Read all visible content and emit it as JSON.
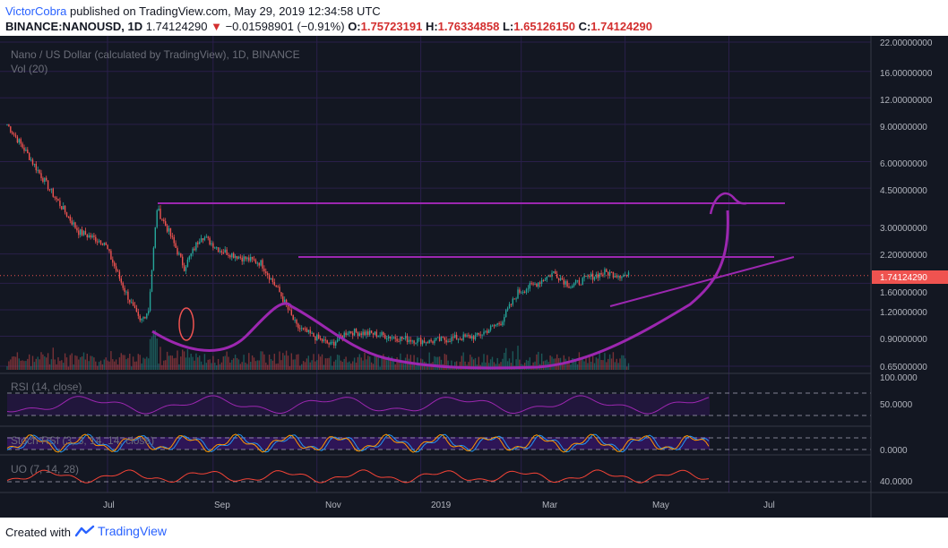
{
  "header": {
    "author": "VictorCobra",
    "published_text": "published on TradingView.com, May 29, 2019 12:34:58 UTC",
    "symbol": "BINANCE:NANOUSD, 1D",
    "last": "1.74124290",
    "change_arrow": "▼",
    "change": "−0.01598901 (−0.91%)",
    "o_label": "O:",
    "o_value": "1.75723191",
    "h_label": "H:",
    "h_value": "1.76334858",
    "l_label": "L:",
    "l_value": "1.65126150",
    "c_label": "C:",
    "c_value": "1.74124290"
  },
  "footer": {
    "created_with": "Created with",
    "brand": "TradingView"
  },
  "colors": {
    "background": "#131722",
    "up": "#26a69a",
    "down": "#ef5350",
    "drawing": "#9c27b0",
    "price_label": "#ef5350",
    "grid": "#2a1f4a"
  },
  "chart_data": [
    {
      "type": "line",
      "title": "Nano / US Dollar (calculated by TradingView), 1D, BINANCE",
      "y_scale": "log",
      "y_ticks": [
        "22.00000000",
        "16.00000000",
        "12.00000000",
        "9.00000000",
        "6.00000000",
        "4.50000000",
        "3.00000000",
        "2.20000000",
        "1.74124290",
        "1.60000000",
        "1.20000000",
        "0.90000000",
        "0.65000000"
      ],
      "x_ticks": [
        "Jul",
        "Sep",
        "Nov",
        "2019",
        "Mar",
        "May",
        "Jul"
      ],
      "current_price": "1.74124290",
      "x": [
        "2018-05-29",
        "2018-06-10",
        "2018-06-25",
        "2018-07-10",
        "2018-07-25",
        "2018-08-05",
        "2018-08-15",
        "2018-08-20",
        "2018-08-25",
        "2018-09-01",
        "2018-09-10",
        "2018-09-20",
        "2018-10-01",
        "2018-10-15",
        "2018-10-25",
        "2018-11-05",
        "2018-11-15",
        "2018-11-25",
        "2018-12-05",
        "2018-12-15",
        "2019-01-01",
        "2019-01-15",
        "2019-02-01",
        "2019-02-15",
        "2019-03-01",
        "2019-03-15",
        "2019-03-25",
        "2019-04-05",
        "2019-04-15",
        "2019-04-25",
        "2019-05-05",
        "2019-05-15",
        "2019-05-25",
        "2019-05-29"
      ],
      "series": [
        {
          "values": [
            9.0,
            6.5,
            4.2,
            2.8,
            2.5,
            1.55,
            1.05,
            1.2,
            3.6,
            2.8,
            1.9,
            2.7,
            2.3,
            2.1,
            2.0,
            1.45,
            1.0,
            0.9,
            0.82,
            0.95,
            0.92,
            0.88,
            0.85,
            0.88,
            0.9,
            1.05,
            1.45,
            1.6,
            1.8,
            1.55,
            1.7,
            1.8,
            1.75,
            1.74
          ]
        }
      ],
      "annotations": [
        "Vol (20)"
      ]
    },
    {
      "type": "line",
      "title": "RSI (14, close)",
      "y_ticks": [
        "100.0000",
        "50.0000",
        "0.0000"
      ]
    },
    {
      "type": "line",
      "title": "Stoch RSI (3, 3, 14, 14, close)",
      "y_ticks": [
        "0.0000"
      ]
    },
    {
      "type": "line",
      "title": "UO (7, 14, 28)",
      "y_ticks": [
        "40.0000"
      ]
    }
  ]
}
